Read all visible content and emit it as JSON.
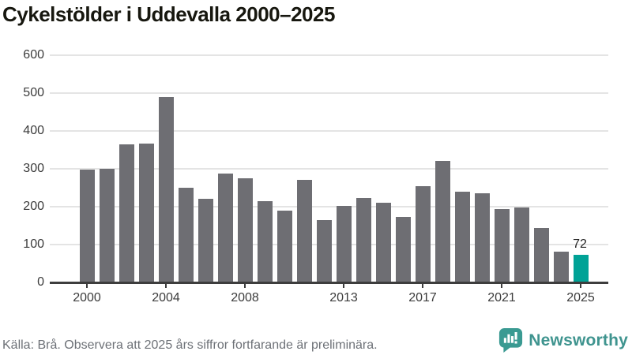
{
  "title": "Cykelstölder i Uddevalla 2000–2025",
  "footer": {
    "source_note": "Källa: Brå. Observera att 2025 års siffror fortfarande är preliminära."
  },
  "branding": {
    "logo_text": "Newsworthy",
    "logo_icon": "newsworthy-speech-bubble-bar-chart",
    "wordmark_color": "#3f948f",
    "icon_color": "#3a9a92"
  },
  "colors": {
    "bar": "#6e6e73",
    "highlight_bar": "#00a296",
    "gridline": "#e4e4e4",
    "axis": "#3d3d3d",
    "title_text": "#17170f",
    "tick_label": "#3b3b3b",
    "footer_text": "#6d7177"
  },
  "chart_data": {
    "type": "bar",
    "title": "Cykelstölder i Uddevalla 2000–2025",
    "x": [
      2000,
      2001,
      2002,
      2003,
      2004,
      2005,
      2006,
      2007,
      2008,
      2009,
      2010,
      2011,
      2012,
      2013,
      2014,
      2015,
      2016,
      2017,
      2018,
      2019,
      2020,
      2021,
      2022,
      2023,
      2024,
      2025
    ],
    "values": [
      297,
      300,
      364,
      366,
      489,
      251,
      220,
      288,
      276,
      215,
      190,
      271,
      165,
      203,
      222,
      211,
      173,
      255,
      320,
      239,
      236,
      193,
      197,
      144,
      81,
      72
    ],
    "highlight_index": 25,
    "highlight_label": "72",
    "xlabel": "",
    "ylabel": "",
    "ylim": [
      0,
      600
    ],
    "yticks": [
      0,
      100,
      200,
      300,
      400,
      500,
      600
    ],
    "xticks": [
      2000,
      2004,
      2008,
      2013,
      2017,
      2021,
      2025
    ],
    "grid": "horizontal",
    "legend": "none"
  }
}
